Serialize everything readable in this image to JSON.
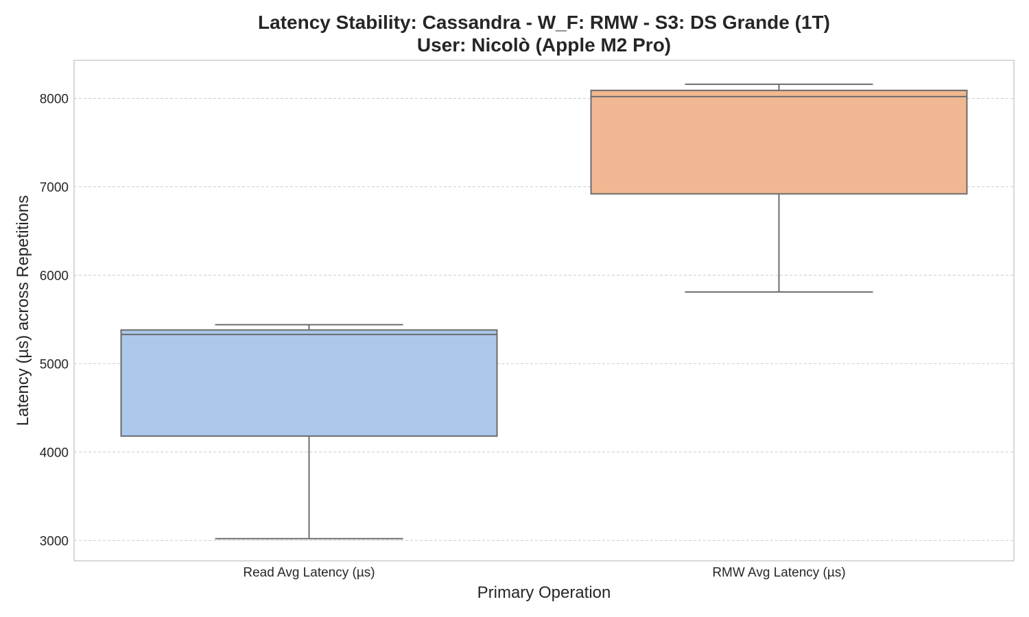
{
  "chart_data": {
    "type": "box",
    "title_line1": "Latency Stability: Cassandra - W_F: RMW - S3: DS Grande (1T)",
    "title_line2": "User: Nicolò (Apple M2 Pro)",
    "xlabel": "Primary Operation",
    "ylabel": "Latency (µs) across Repetitions",
    "ylim": [
      2770,
      8430
    ],
    "yticks": [
      3000,
      4000,
      5000,
      6000,
      7000,
      8000
    ],
    "grid": true,
    "categories": [
      "Read Avg Latency (µs)",
      "RMW Avg Latency (µs)"
    ],
    "boxes": [
      {
        "category": "Read Avg Latency (µs)",
        "min": 3020,
        "q1": 4180,
        "median": 5330,
        "q3": 5380,
        "max": 5440,
        "color": "#abc8eb"
      },
      {
        "category": "RMW Avg Latency (µs)",
        "min": 5810,
        "q1": 6920,
        "median": 8020,
        "q3": 8090,
        "max": 8160,
        "color": "#f0b892"
      }
    ]
  }
}
